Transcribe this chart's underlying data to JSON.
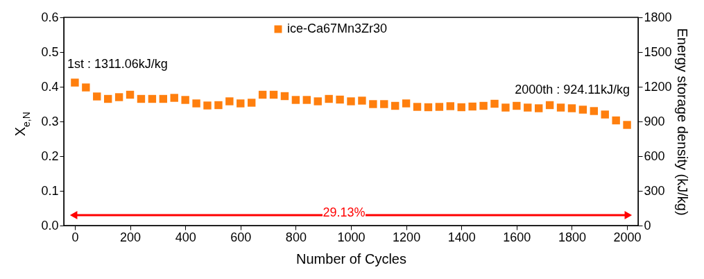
{
  "chart_data": {
    "type": "scatter",
    "xlabel": "Number of Cycles",
    "ylabel": "X$_{e,N}$",
    "y2label": "Energy storage density (kJ/kg)",
    "x": [
      0,
      40,
      80,
      120,
      160,
      200,
      240,
      280,
      320,
      360,
      400,
      440,
      480,
      520,
      560,
      600,
      640,
      680,
      720,
      760,
      800,
      840,
      880,
      920,
      960,
      1000,
      1040,
      1080,
      1120,
      1160,
      1200,
      1240,
      1280,
      1320,
      1360,
      1400,
      1440,
      1480,
      1520,
      1560,
      1600,
      1640,
      1680,
      1720,
      1760,
      1800,
      1840,
      1880,
      1920,
      1960,
      2000
    ],
    "series": [
      {
        "name": "ice-Ca67Mn3Zr30",
        "color": "#ff7f0e",
        "values": [
          0.412,
          0.398,
          0.372,
          0.365,
          0.37,
          0.377,
          0.365,
          0.365,
          0.365,
          0.368,
          0.362,
          0.352,
          0.346,
          0.347,
          0.358,
          0.352,
          0.354,
          0.377,
          0.377,
          0.373,
          0.362,
          0.362,
          0.358,
          0.365,
          0.363,
          0.358,
          0.36,
          0.35,
          0.35,
          0.345,
          0.352,
          0.342,
          0.341,
          0.342,
          0.344,
          0.341,
          0.343,
          0.345,
          0.351,
          0.34,
          0.345,
          0.34,
          0.338,
          0.347,
          0.34,
          0.338,
          0.334,
          0.33,
          0.32,
          0.303,
          0.29
        ]
      },
      {
        "type": "line",
        "color": "#ff0000",
        "x": [
          0,
          2000
        ],
        "values": [
          0.03,
          0.03
        ],
        "marker": "triangle"
      }
    ],
    "xlim": [
      -40,
      2040
    ],
    "xticks": [
      0,
      200,
      400,
      600,
      800,
      1000,
      1200,
      1400,
      1600,
      1800,
      2000
    ],
    "ylim": [
      0,
      0.6
    ],
    "yticks": [
      {
        "value": 0,
        "label": "0.0"
      },
      0.1,
      0.2,
      0.3,
      0.4,
      0.5,
      0.6
    ],
    "y2lim": [
      0,
      1800
    ],
    "y2ticks": [
      0,
      300,
      600,
      900,
      1200,
      1500,
      1800
    ],
    "annotations": [
      "1st : 1311.06kJ/kg",
      "2000th : 924.11kJ/kg",
      "29.13%"
    ],
    "marker": "square",
    "legend": "top",
    "grid": false
  }
}
